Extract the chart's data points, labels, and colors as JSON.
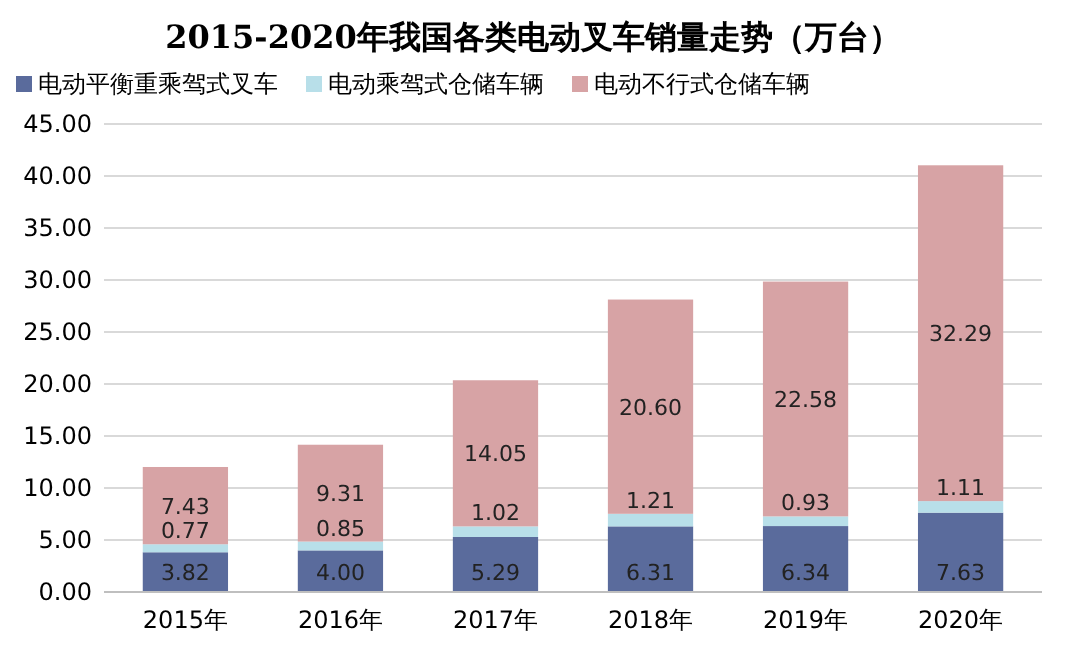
{
  "chart_data": {
    "type": "bar",
    "title": "2015-2020年我国各类电动叉车销量走势（万台）",
    "stacked": true,
    "categories": [
      "2015年",
      "2016年",
      "2017年",
      "2018年",
      "2019年",
      "2020年"
    ],
    "series": [
      {
        "name": "电动平衡重乘驾式叉车",
        "color": "#5a6b9c",
        "values": [
          3.82,
          4.0,
          5.29,
          6.31,
          6.34,
          7.63
        ],
        "value_labels": [
          "3.82",
          "4.00",
          "5.29",
          "6.31",
          "6.34",
          "7.63"
        ]
      },
      {
        "name": "电动乘驾式仓储车辆",
        "color": "#b8dfe9",
        "values": [
          0.77,
          0.85,
          1.02,
          1.21,
          0.93,
          1.11
        ],
        "value_labels": [
          "0.77",
          "0.85",
          "1.02",
          "1.21",
          "0.93",
          "1.11"
        ]
      },
      {
        "name": "电动不行式仓储车辆",
        "color": "#d7a3a5",
        "values": [
          7.43,
          9.31,
          14.05,
          20.6,
          22.58,
          32.29
        ],
        "value_labels": [
          "7.43",
          "9.31",
          "14.05",
          "20.60",
          "22.58",
          "32.29"
        ]
      }
    ],
    "ylim": [
      0,
      45
    ],
    "yticks": [
      {
        "value": 0,
        "label": "0.00"
      },
      {
        "value": 5,
        "label": "5.00"
      },
      {
        "value": 10,
        "label": "10.00"
      },
      {
        "value": 15,
        "label": "15.00"
      },
      {
        "value": 20,
        "label": "20.00"
      },
      {
        "value": 25,
        "label": "25.00"
      },
      {
        "value": 30,
        "label": "30.00"
      },
      {
        "value": 35,
        "label": "35.00"
      },
      {
        "value": 40,
        "label": "40.00"
      },
      {
        "value": 45,
        "label": "45.00"
      }
    ],
    "grid": "y",
    "legend": "top"
  }
}
